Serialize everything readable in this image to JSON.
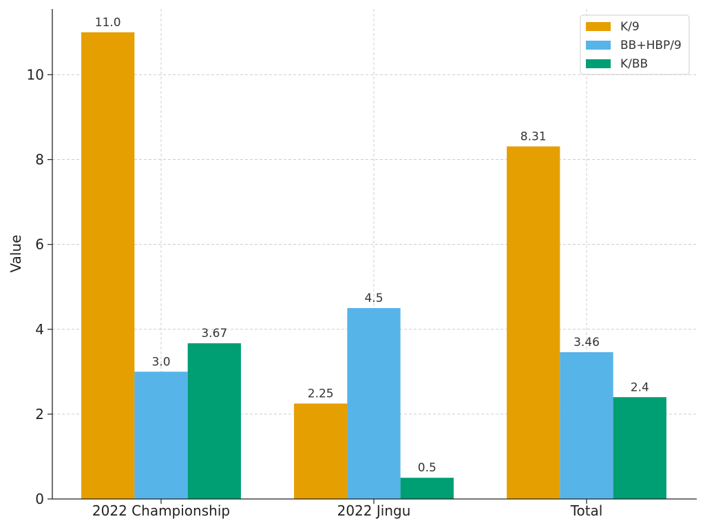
{
  "chart_data": {
    "type": "bar",
    "title": "",
    "xlabel": "",
    "ylabel": "Value",
    "categories": [
      "2022 Championship",
      "2022 Jingu",
      "Total"
    ],
    "series": [
      {
        "name": "K/9",
        "values": [
          11.0,
          2.25,
          8.31
        ],
        "labels": [
          "11.0",
          "2.25",
          "8.31"
        ],
        "color": "#E69F00"
      },
      {
        "name": "BB+HBP/9",
        "values": [
          3.0,
          4.5,
          3.46
        ],
        "labels": [
          "3.0",
          "4.5",
          "3.46"
        ],
        "color": "#56B4E9"
      },
      {
        "name": "K/BB",
        "values": [
          3.67,
          0.5,
          2.4
        ],
        "labels": [
          "3.67",
          "0.5",
          "2.4"
        ],
        "color": "#009E73"
      }
    ],
    "ylim": [
      0,
      11.55
    ],
    "yticks": [
      0,
      2,
      4,
      6,
      8,
      10
    ],
    "ytick_labels": [
      "0",
      "2",
      "4",
      "6",
      "8",
      "10"
    ],
    "grid": true,
    "legend_position": "top-right"
  }
}
